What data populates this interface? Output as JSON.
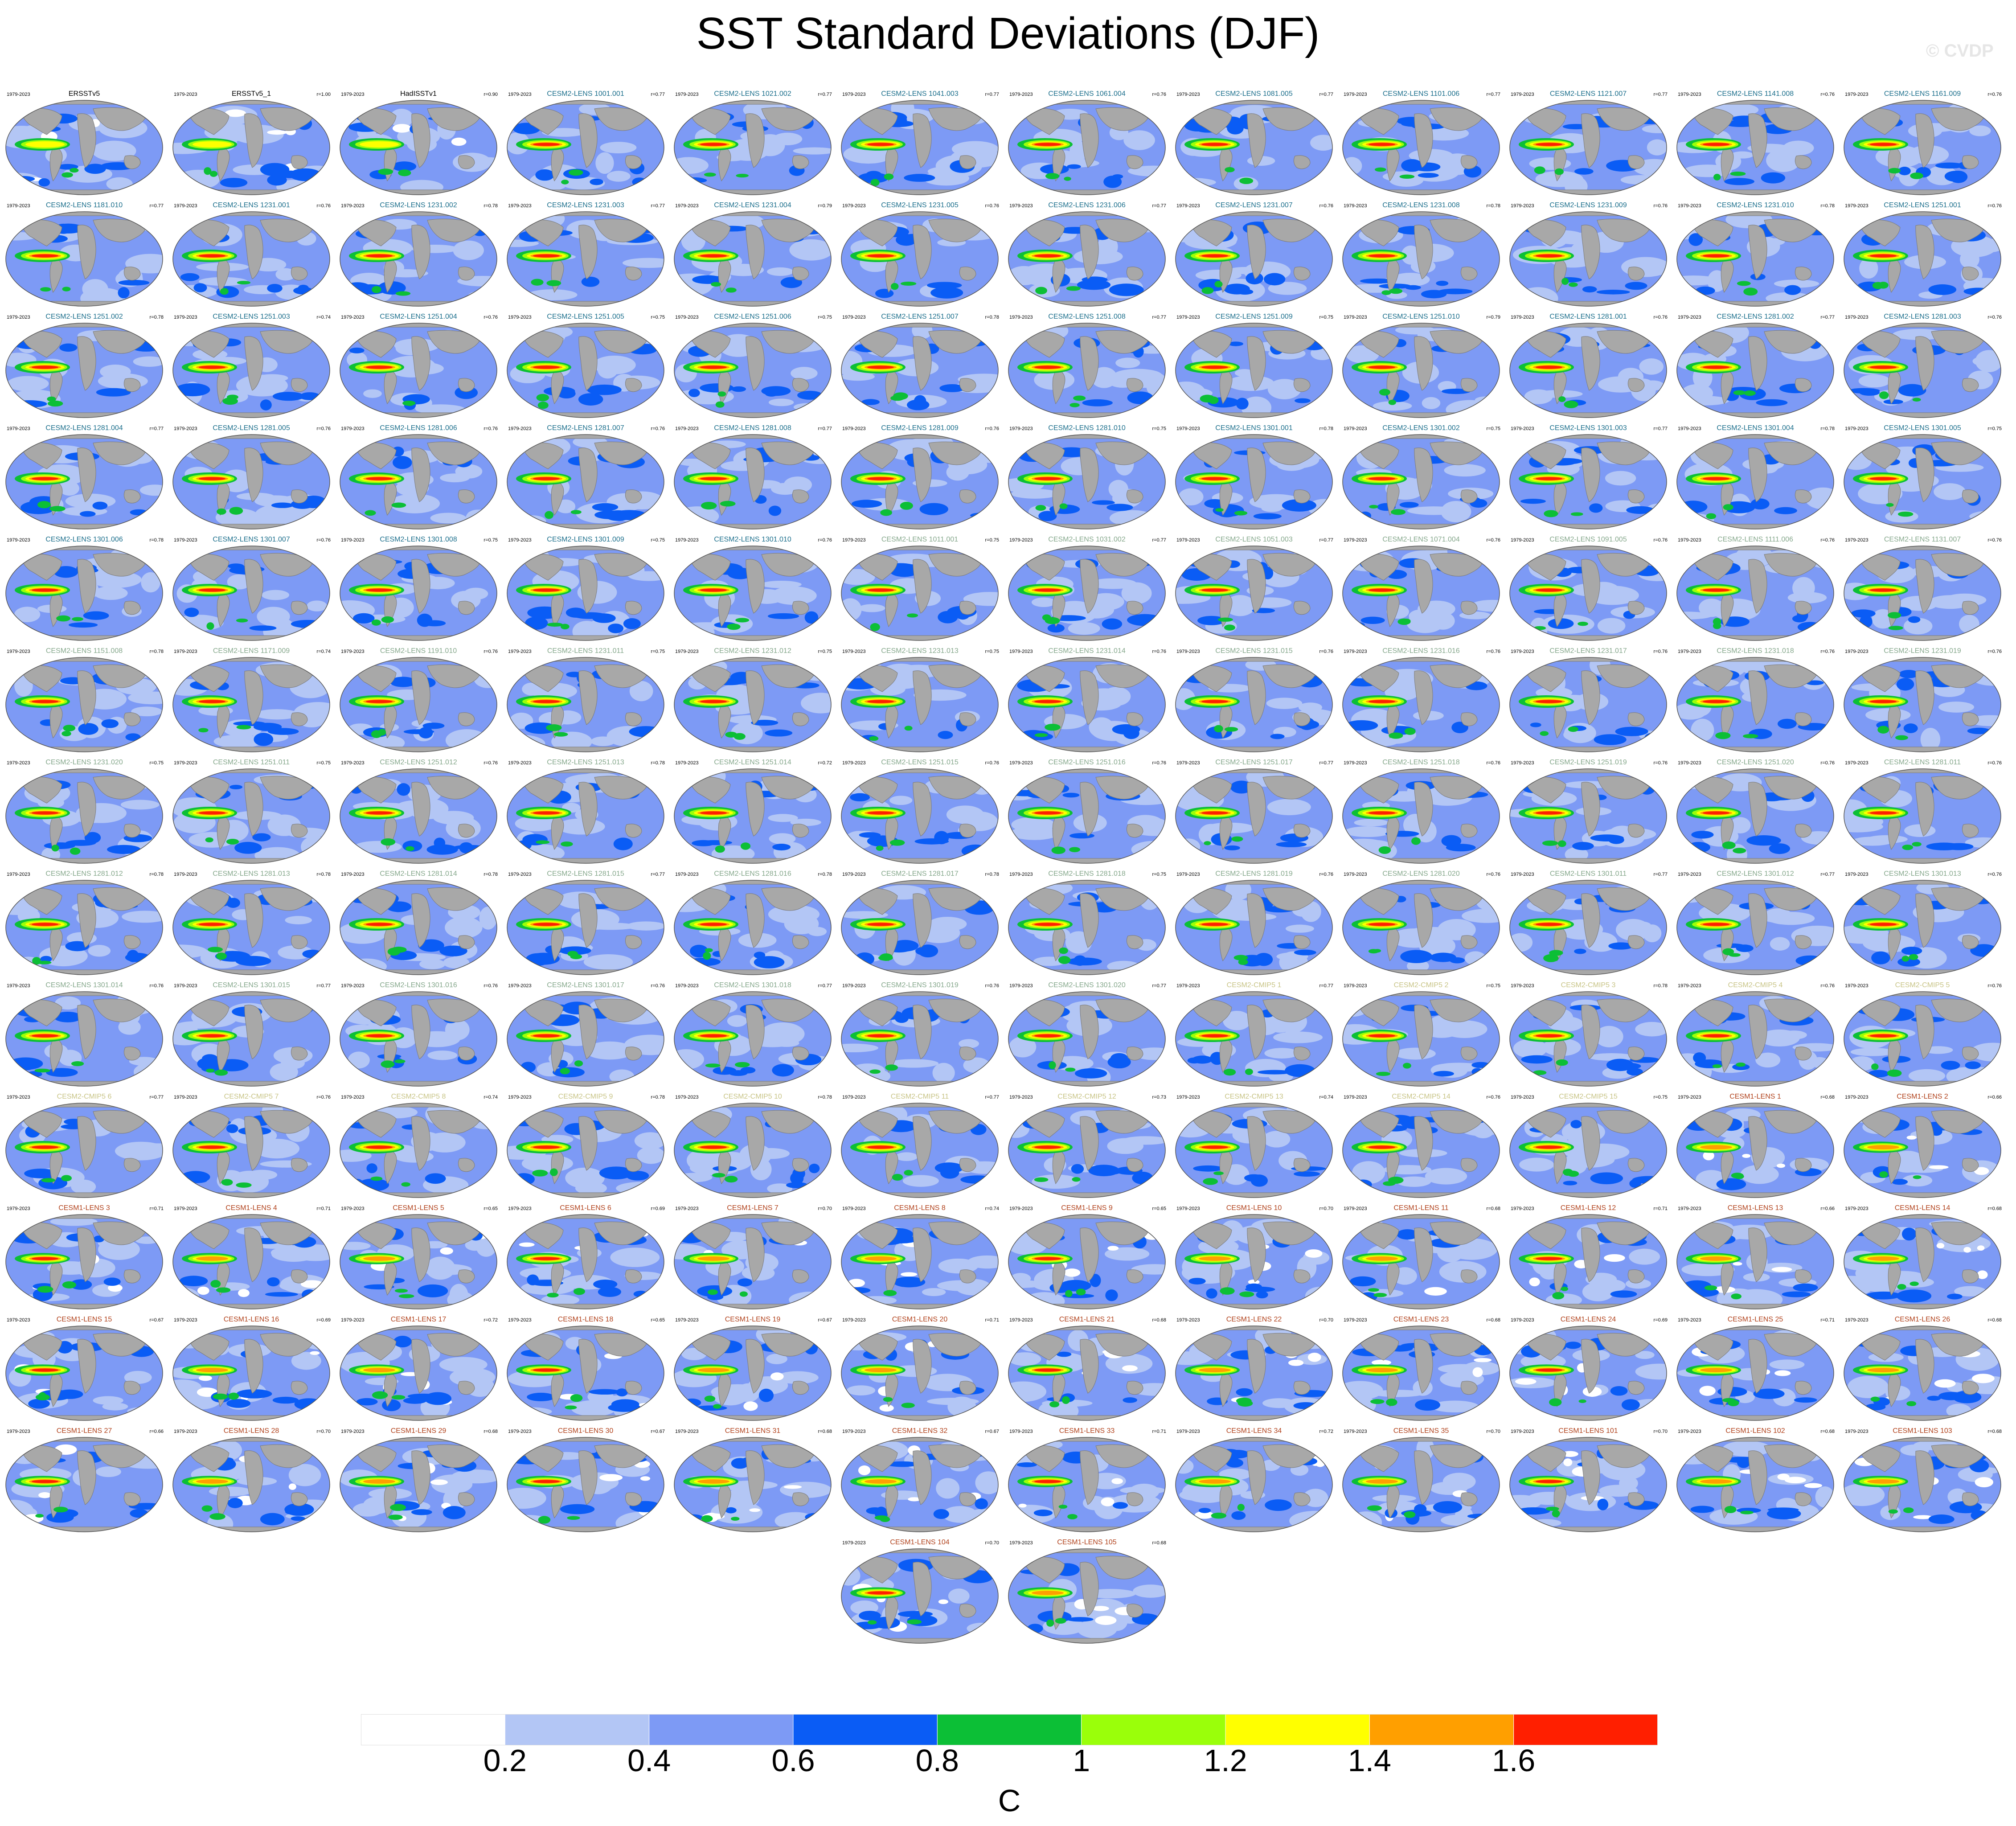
{
  "chart_data": {
    "type": "heatmap",
    "title": "SST Standard Deviations (DJF)",
    "watermark": "© CVDP",
    "period": "1979-2023",
    "colorbar": {
      "ticks": [
        "0.2",
        "0.4",
        "0.6",
        "0.8",
        "1",
        "1.2",
        "1.4",
        "1.6"
      ],
      "unit": "C",
      "colors": [
        "#ffffff",
        "#b3c6f5",
        "#7d9af5",
        "#0a5cf5",
        "#0cbf36",
        "#9aff0a",
        "#ffff00",
        "#ff9f00",
        "#ff1f00"
      ],
      "boundaries": [
        0.2,
        0.4,
        0.6,
        0.8,
        1.0,
        1.2,
        1.4,
        1.6
      ]
    },
    "panels": [
      {
        "title": "ERSSTv5",
        "r": "",
        "group": "obs"
      },
      {
        "title": "ERSSTv5_1",
        "r": "r=1.00",
        "group": "obs"
      },
      {
        "title": "HadISSTv1",
        "r": "r=0.90",
        "group": "obs"
      },
      {
        "title": "CESM2-LENS 1001.001",
        "r": "r=0.77",
        "group": "c2"
      },
      {
        "title": "CESM2-LENS 1021.002",
        "r": "r=0.77",
        "group": "c2"
      },
      {
        "title": "CESM2-LENS 1041.003",
        "r": "r=0.77",
        "group": "c2"
      },
      {
        "title": "CESM2-LENS 1061.004",
        "r": "r=0.76",
        "group": "c2"
      },
      {
        "title": "CESM2-LENS 1081.005",
        "r": "r=0.77",
        "group": "c2"
      },
      {
        "title": "CESM2-LENS 1101.006",
        "r": "r=0.77",
        "group": "c2"
      },
      {
        "title": "CESM2-LENS 1121.007",
        "r": "r=0.77",
        "group": "c2"
      },
      {
        "title": "CESM2-LENS 1141.008",
        "r": "r=0.76",
        "group": "c2"
      },
      {
        "title": "CESM2-LENS 1161.009",
        "r": "r=0.76",
        "group": "c2"
      },
      {
        "title": "CESM2-LENS 1181.010",
        "r": "r=0.77",
        "group": "c2"
      },
      {
        "title": "CESM2-LENS 1231.001",
        "r": "r=0.76",
        "group": "c2"
      },
      {
        "title": "CESM2-LENS 1231.002",
        "r": "r=0.78",
        "group": "c2"
      },
      {
        "title": "CESM2-LENS 1231.003",
        "r": "r=0.77",
        "group": "c2"
      },
      {
        "title": "CESM2-LENS 1231.004",
        "r": "r=0.79",
        "group": "c2"
      },
      {
        "title": "CESM2-LENS 1231.005",
        "r": "r=0.76",
        "group": "c2"
      },
      {
        "title": "CESM2-LENS 1231.006",
        "r": "r=0.77",
        "group": "c2"
      },
      {
        "title": "CESM2-LENS 1231.007",
        "r": "r=0.76",
        "group": "c2"
      },
      {
        "title": "CESM2-LENS 1231.008",
        "r": "r=0.78",
        "group": "c2"
      },
      {
        "title": "CESM2-LENS 1231.009",
        "r": "r=0.76",
        "group": "c2"
      },
      {
        "title": "CESM2-LENS 1231.010",
        "r": "r=0.78",
        "group": "c2"
      },
      {
        "title": "CESM2-LENS 1251.001",
        "r": "r=0.76",
        "group": "c2"
      },
      {
        "title": "CESM2-LENS 1251.002",
        "r": "r=0.78",
        "group": "c2"
      },
      {
        "title": "CESM2-LENS 1251.003",
        "r": "r=0.74",
        "group": "c2"
      },
      {
        "title": "CESM2-LENS 1251.004",
        "r": "r=0.76",
        "group": "c2"
      },
      {
        "title": "CESM2-LENS 1251.005",
        "r": "r=0.75",
        "group": "c2"
      },
      {
        "title": "CESM2-LENS 1251.006",
        "r": "r=0.75",
        "group": "c2"
      },
      {
        "title": "CESM2-LENS 1251.007",
        "r": "r=0.78",
        "group": "c2"
      },
      {
        "title": "CESM2-LENS 1251.008",
        "r": "r=0.77",
        "group": "c2"
      },
      {
        "title": "CESM2-LENS 1251.009",
        "r": "r=0.75",
        "group": "c2"
      },
      {
        "title": "CESM2-LENS 1251.010",
        "r": "r=0.79",
        "group": "c2"
      },
      {
        "title": "CESM2-LENS 1281.001",
        "r": "r=0.76",
        "group": "c2"
      },
      {
        "title": "CESM2-LENS 1281.002",
        "r": "r=0.77",
        "group": "c2"
      },
      {
        "title": "CESM2-LENS 1281.003",
        "r": "r=0.76",
        "group": "c2"
      },
      {
        "title": "CESM2-LENS 1281.004",
        "r": "r=0.77",
        "group": "c2"
      },
      {
        "title": "CESM2-LENS 1281.005",
        "r": "r=0.76",
        "group": "c2"
      },
      {
        "title": "CESM2-LENS 1281.006",
        "r": "r=0.76",
        "group": "c2"
      },
      {
        "title": "CESM2-LENS 1281.007",
        "r": "r=0.76",
        "group": "c2"
      },
      {
        "title": "CESM2-LENS 1281.008",
        "r": "r=0.77",
        "group": "c2"
      },
      {
        "title": "CESM2-LENS 1281.009",
        "r": "r=0.76",
        "group": "c2"
      },
      {
        "title": "CESM2-LENS 1281.010",
        "r": "r=0.75",
        "group": "c2"
      },
      {
        "title": "CESM2-LENS 1301.001",
        "r": "r=0.78",
        "group": "c2"
      },
      {
        "title": "CESM2-LENS 1301.002",
        "r": "r=0.75",
        "group": "c2"
      },
      {
        "title": "CESM2-LENS 1301.003",
        "r": "r=0.77",
        "group": "c2"
      },
      {
        "title": "CESM2-LENS 1301.004",
        "r": "r=0.78",
        "group": "c2"
      },
      {
        "title": "CESM2-LENS 1301.005",
        "r": "r=0.75",
        "group": "c2"
      },
      {
        "title": "CESM2-LENS 1301.006",
        "r": "r=0.78",
        "group": "c2"
      },
      {
        "title": "CESM2-LENS 1301.007",
        "r": "r=0.76",
        "group": "c2"
      },
      {
        "title": "CESM2-LENS 1301.008",
        "r": "r=0.75",
        "group": "c2"
      },
      {
        "title": "CESM2-LENS 1301.009",
        "r": "r=0.75",
        "group": "c2"
      },
      {
        "title": "CESM2-LENS 1301.010",
        "r": "r=0.76",
        "group": "c2"
      },
      {
        "title": "CESM2-LENS 1011.001",
        "r": "r=0.75",
        "group": "c2s"
      },
      {
        "title": "CESM2-LENS 1031.002",
        "r": "r=0.77",
        "group": "c2s"
      },
      {
        "title": "CESM2-LENS 1051.003",
        "r": "r=0.77",
        "group": "c2s"
      },
      {
        "title": "CESM2-LENS 1071.004",
        "r": "r=0.76",
        "group": "c2s"
      },
      {
        "title": "CESM2-LENS 1091.005",
        "r": "r=0.76",
        "group": "c2s"
      },
      {
        "title": "CESM2-LENS 1111.006",
        "r": "r=0.76",
        "group": "c2s"
      },
      {
        "title": "CESM2-LENS 1131.007",
        "r": "r=0.76",
        "group": "c2s"
      },
      {
        "title": "CESM2-LENS 1151.008",
        "r": "r=0.78",
        "group": "c2s"
      },
      {
        "title": "CESM2-LENS 1171.009",
        "r": "r=0.74",
        "group": "c2s"
      },
      {
        "title": "CESM2-LENS 1191.010",
        "r": "r=0.76",
        "group": "c2s"
      },
      {
        "title": "CESM2-LENS 1231.011",
        "r": "r=0.75",
        "group": "c2s"
      },
      {
        "title": "CESM2-LENS 1231.012",
        "r": "r=0.75",
        "group": "c2s"
      },
      {
        "title": "CESM2-LENS 1231.013",
        "r": "r=0.75",
        "group": "c2s"
      },
      {
        "title": "CESM2-LENS 1231.014",
        "r": "r=0.76",
        "group": "c2s"
      },
      {
        "title": "CESM2-LENS 1231.015",
        "r": "r=0.76",
        "group": "c2s"
      },
      {
        "title": "CESM2-LENS 1231.016",
        "r": "r=0.76",
        "group": "c2s"
      },
      {
        "title": "CESM2-LENS 1231.017",
        "r": "r=0.76",
        "group": "c2s"
      },
      {
        "title": "CESM2-LENS 1231.018",
        "r": "r=0.76",
        "group": "c2s"
      },
      {
        "title": "CESM2-LENS 1231.019",
        "r": "r=0.76",
        "group": "c2s"
      },
      {
        "title": "CESM2-LENS 1231.020",
        "r": "r=0.75",
        "group": "c2s"
      },
      {
        "title": "CESM2-LENS 1251.011",
        "r": "r=0.75",
        "group": "c2s"
      },
      {
        "title": "CESM2-LENS 1251.012",
        "r": "r=0.76",
        "group": "c2s"
      },
      {
        "title": "CESM2-LENS 1251.013",
        "r": "r=0.78",
        "group": "c2s"
      },
      {
        "title": "CESM2-LENS 1251.014",
        "r": "r=0.72",
        "group": "c2s"
      },
      {
        "title": "CESM2-LENS 1251.015",
        "r": "r=0.76",
        "group": "c2s"
      },
      {
        "title": "CESM2-LENS 1251.016",
        "r": "r=0.76",
        "group": "c2s"
      },
      {
        "title": "CESM2-LENS 1251.017",
        "r": "r=0.77",
        "group": "c2s"
      },
      {
        "title": "CESM2-LENS 1251.018",
        "r": "r=0.76",
        "group": "c2s"
      },
      {
        "title": "CESM2-LENS 1251.019",
        "r": "r=0.76",
        "group": "c2s"
      },
      {
        "title": "CESM2-LENS 1251.020",
        "r": "r=0.76",
        "group": "c2s"
      },
      {
        "title": "CESM2-LENS 1281.011",
        "r": "r=0.76",
        "group": "c2s"
      },
      {
        "title": "CESM2-LENS 1281.012",
        "r": "r=0.78",
        "group": "c2s"
      },
      {
        "title": "CESM2-LENS 1281.013",
        "r": "r=0.78",
        "group": "c2s"
      },
      {
        "title": "CESM2-LENS 1281.014",
        "r": "r=0.78",
        "group": "c2s"
      },
      {
        "title": "CESM2-LENS 1281.015",
        "r": "r=0.77",
        "group": "c2s"
      },
      {
        "title": "CESM2-LENS 1281.016",
        "r": "r=0.78",
        "group": "c2s"
      },
      {
        "title": "CESM2-LENS 1281.017",
        "r": "r=0.78",
        "group": "c2s"
      },
      {
        "title": "CESM2-LENS 1281.018",
        "r": "r=0.75",
        "group": "c2s"
      },
      {
        "title": "CESM2-LENS 1281.019",
        "r": "r=0.76",
        "group": "c2s"
      },
      {
        "title": "CESM2-LENS 1281.020",
        "r": "r=0.76",
        "group": "c2s"
      },
      {
        "title": "CESM2-LENS 1301.011",
        "r": "r=0.77",
        "group": "c2s"
      },
      {
        "title": "CESM2-LENS 1301.012",
        "r": "r=0.77",
        "group": "c2s"
      },
      {
        "title": "CESM2-LENS 1301.013",
        "r": "r=0.76",
        "group": "c2s"
      },
      {
        "title": "CESM2-LENS 1301.014",
        "r": "r=0.76",
        "group": "c2s"
      },
      {
        "title": "CESM2-LENS 1301.015",
        "r": "r=0.77",
        "group": "c2s"
      },
      {
        "title": "CESM2-LENS 1301.016",
        "r": "r=0.76",
        "group": "c2s"
      },
      {
        "title": "CESM2-LENS 1301.017",
        "r": "r=0.76",
        "group": "c2s"
      },
      {
        "title": "CESM2-LENS 1301.018",
        "r": "r=0.77",
        "group": "c2s"
      },
      {
        "title": "CESM2-LENS 1301.019",
        "r": "r=0.76",
        "group": "c2s"
      },
      {
        "title": "CESM2-LENS 1301.020",
        "r": "r=0.77",
        "group": "c2s"
      },
      {
        "title": "CESM2-CMIP5 1",
        "r": "r=0.77",
        "group": "c5"
      },
      {
        "title": "CESM2-CMIP5 2",
        "r": "r=0.75",
        "group": "c5"
      },
      {
        "title": "CESM2-CMIP5 3",
        "r": "r=0.78",
        "group": "c5"
      },
      {
        "title": "CESM2-CMIP5 4",
        "r": "r=0.76",
        "group": "c5"
      },
      {
        "title": "CESM2-CMIP5 5",
        "r": "r=0.76",
        "group": "c5"
      },
      {
        "title": "CESM2-CMIP5 6",
        "r": "r=0.77",
        "group": "c5"
      },
      {
        "title": "CESM2-CMIP5 7",
        "r": "r=0.76",
        "group": "c5"
      },
      {
        "title": "CESM2-CMIP5 8",
        "r": "r=0.74",
        "group": "c5"
      },
      {
        "title": "CESM2-CMIP5 9",
        "r": "r=0.78",
        "group": "c5"
      },
      {
        "title": "CESM2-CMIP5 10",
        "r": "r=0.78",
        "group": "c5"
      },
      {
        "title": "CESM2-CMIP5 11",
        "r": "r=0.77",
        "group": "c5"
      },
      {
        "title": "CESM2-CMIP5 12",
        "r": "r=0.73",
        "group": "c5"
      },
      {
        "title": "CESM2-CMIP5 13",
        "r": "r=0.74",
        "group": "c5"
      },
      {
        "title": "CESM2-CMIP5 14",
        "r": "r=0.76",
        "group": "c5"
      },
      {
        "title": "CESM2-CMIP5 15",
        "r": "r=0.75",
        "group": "c5"
      },
      {
        "title": "CESM1-LENS 1",
        "r": "r=0.68",
        "group": "c1"
      },
      {
        "title": "CESM1-LENS 2",
        "r": "r=0.66",
        "group": "c1"
      },
      {
        "title": "CESM1-LENS 3",
        "r": "r=0.71",
        "group": "c1"
      },
      {
        "title": "CESM1-LENS 4",
        "r": "r=0.71",
        "group": "c1"
      },
      {
        "title": "CESM1-LENS 5",
        "r": "r=0.65",
        "group": "c1"
      },
      {
        "title": "CESM1-LENS 6",
        "r": "r=0.69",
        "group": "c1"
      },
      {
        "title": "CESM1-LENS 7",
        "r": "r=0.70",
        "group": "c1"
      },
      {
        "title": "CESM1-LENS 8",
        "r": "r=0.74",
        "group": "c1"
      },
      {
        "title": "CESM1-LENS 9",
        "r": "r=0.65",
        "group": "c1"
      },
      {
        "title": "CESM1-LENS 10",
        "r": "r=0.70",
        "group": "c1"
      },
      {
        "title": "CESM1-LENS 11",
        "r": "r=0.68",
        "group": "c1"
      },
      {
        "title": "CESM1-LENS 12",
        "r": "r=0.71",
        "group": "c1"
      },
      {
        "title": "CESM1-LENS 13",
        "r": "r=0.66",
        "group": "c1"
      },
      {
        "title": "CESM1-LENS 14",
        "r": "r=0.68",
        "group": "c1"
      },
      {
        "title": "CESM1-LENS 15",
        "r": "r=0.67",
        "group": "c1"
      },
      {
        "title": "CESM1-LENS 16",
        "r": "r=0.69",
        "group": "c1"
      },
      {
        "title": "CESM1-LENS 17",
        "r": "r=0.72",
        "group": "c1"
      },
      {
        "title": "CESM1-LENS 18",
        "r": "r=0.65",
        "group": "c1"
      },
      {
        "title": "CESM1-LENS 19",
        "r": "r=0.67",
        "group": "c1"
      },
      {
        "title": "CESM1-LENS 20",
        "r": "r=0.71",
        "group": "c1"
      },
      {
        "title": "CESM1-LENS 21",
        "r": "r=0.68",
        "group": "c1"
      },
      {
        "title": "CESM1-LENS 22",
        "r": "r=0.70",
        "group": "c1"
      },
      {
        "title": "CESM1-LENS 23",
        "r": "r=0.68",
        "group": "c1"
      },
      {
        "title": "CESM1-LENS 24",
        "r": "r=0.69",
        "group": "c1"
      },
      {
        "title": "CESM1-LENS 25",
        "r": "r=0.71",
        "group": "c1"
      },
      {
        "title": "CESM1-LENS 26",
        "r": "r=0.68",
        "group": "c1"
      },
      {
        "title": "CESM1-LENS 27",
        "r": "r=0.66",
        "group": "c1"
      },
      {
        "title": "CESM1-LENS 28",
        "r": "r=0.70",
        "group": "c1"
      },
      {
        "title": "CESM1-LENS 29",
        "r": "r=0.68",
        "group": "c1"
      },
      {
        "title": "CESM1-LENS 30",
        "r": "r=0.67",
        "group": "c1"
      },
      {
        "title": "CESM1-LENS 31",
        "r": "r=0.68",
        "group": "c1"
      },
      {
        "title": "CESM1-LENS 32",
        "r": "r=0.67",
        "group": "c1"
      },
      {
        "title": "CESM1-LENS 33",
        "r": "r=0.71",
        "group": "c1"
      },
      {
        "title": "CESM1-LENS 34",
        "r": "r=0.72",
        "group": "c1"
      },
      {
        "title": "CESM1-LENS 35",
        "r": "r=0.70",
        "group": "c1"
      },
      {
        "title": "CESM1-LENS 101",
        "r": "r=0.70",
        "group": "c1"
      },
      {
        "title": "CESM1-LENS 102",
        "r": "r=0.68",
        "group": "c1"
      },
      {
        "title": "CESM1-LENS 103",
        "r": "r=0.68",
        "group": "c1"
      },
      {
        "title": "CESM1-LENS 104",
        "r": "r=0.70",
        "group": "c1"
      },
      {
        "title": "CESM1-LENS 105",
        "r": "r=0.68",
        "group": "c1"
      }
    ],
    "group_colors": {
      "obs": "#000000",
      "c2": "#1c6f8c",
      "c2s": "#86a88c",
      "c5": "#c8c486",
      "c1": "#b1421c"
    }
  }
}
